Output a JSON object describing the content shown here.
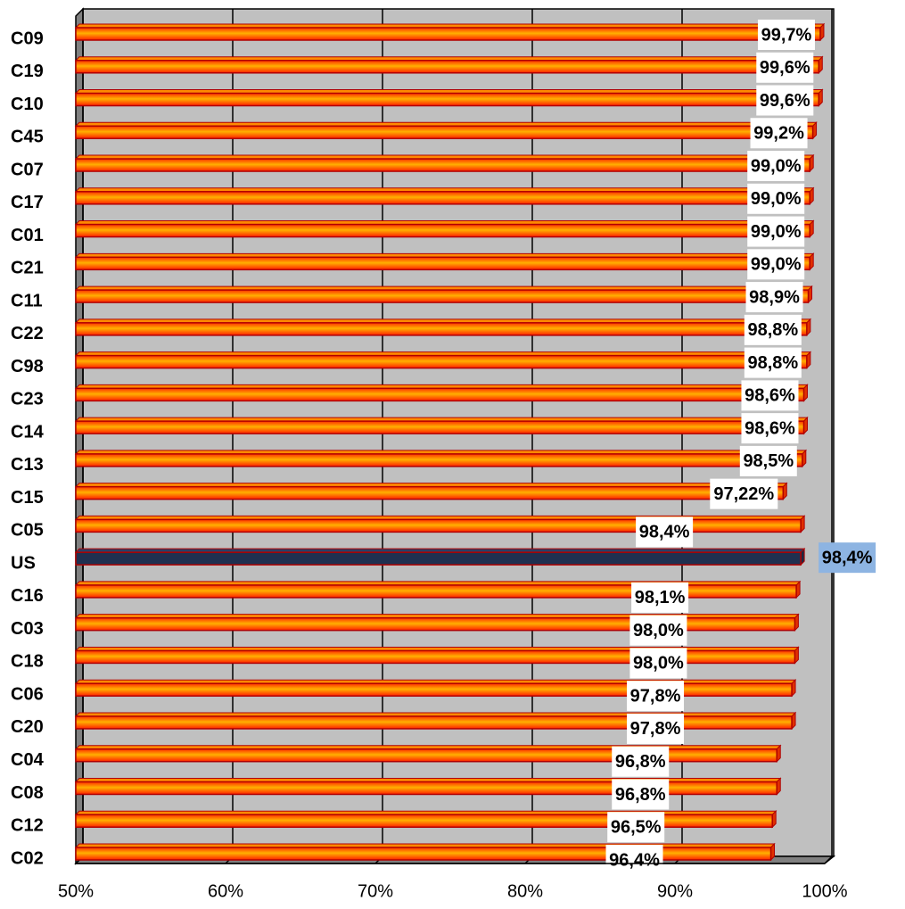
{
  "chart_data": {
    "type": "bar",
    "orientation": "horizontal",
    "categories": [
      "C09",
      "C19",
      "C10",
      "C45",
      "C07",
      "C17",
      "C01",
      "C21",
      "C11",
      "C22",
      "C98",
      "C23",
      "C14",
      "C13",
      "C15",
      "C05",
      "US",
      "C16",
      "C03",
      "C18",
      "C06",
      "C20",
      "C04",
      "C08",
      "C12",
      "C02"
    ],
    "values": [
      99.7,
      99.6,
      99.6,
      99.2,
      99.0,
      99.0,
      99.0,
      99.0,
      98.9,
      98.8,
      98.8,
      98.6,
      98.6,
      98.5,
      97.22,
      98.4,
      98.4,
      98.1,
      98.0,
      98.0,
      97.8,
      97.8,
      96.8,
      96.8,
      96.5,
      96.4
    ],
    "value_labels": [
      "99,7%",
      "99,6%",
      "99,6%",
      "99,2%",
      "99,0%",
      "99,0%",
      "99,0%",
      "99,0%",
      "98,9%",
      "98,8%",
      "98,8%",
      "98,6%",
      "98,6%",
      "98,5%",
      "97,22%",
      "98,4%",
      "98,4%",
      "98,1%",
      "98,0%",
      "98,0%",
      "97,8%",
      "97,8%",
      "96,8%",
      "96,8%",
      "96,5%",
      "96,4%"
    ],
    "color": "#ff5a00",
    "colors": [
      "#ff5a00",
      "#ff5a00",
      "#ff5a00",
      "#ff5a00",
      "#ff5a00",
      "#ff5a00",
      "#ff5a00",
      "#ff5a00",
      "#ff5a00",
      "#ff5a00",
      "#ff5a00",
      "#ff5a00",
      "#ff5a00",
      "#ff5a00",
      "#ff5a00",
      "#ff5a00",
      "#1f3050",
      "#ff5a00",
      "#ff5a00",
      "#ff5a00",
      "#ff5a00",
      "#ff5a00",
      "#ff5a00",
      "#ff5a00",
      "#ff5a00",
      "#ff5a00"
    ],
    "xlim": [
      50,
      100
    ],
    "xticks": [
      {
        "value": 50,
        "label": "50%"
      },
      {
        "value": 60,
        "label": "60%"
      },
      {
        "value": 70,
        "label": "70%"
      },
      {
        "value": 80,
        "label": "80%"
      },
      {
        "value": 90,
        "label": "90%"
      },
      {
        "value": 100,
        "label": "100%"
      }
    ],
    "grid": true
  }
}
